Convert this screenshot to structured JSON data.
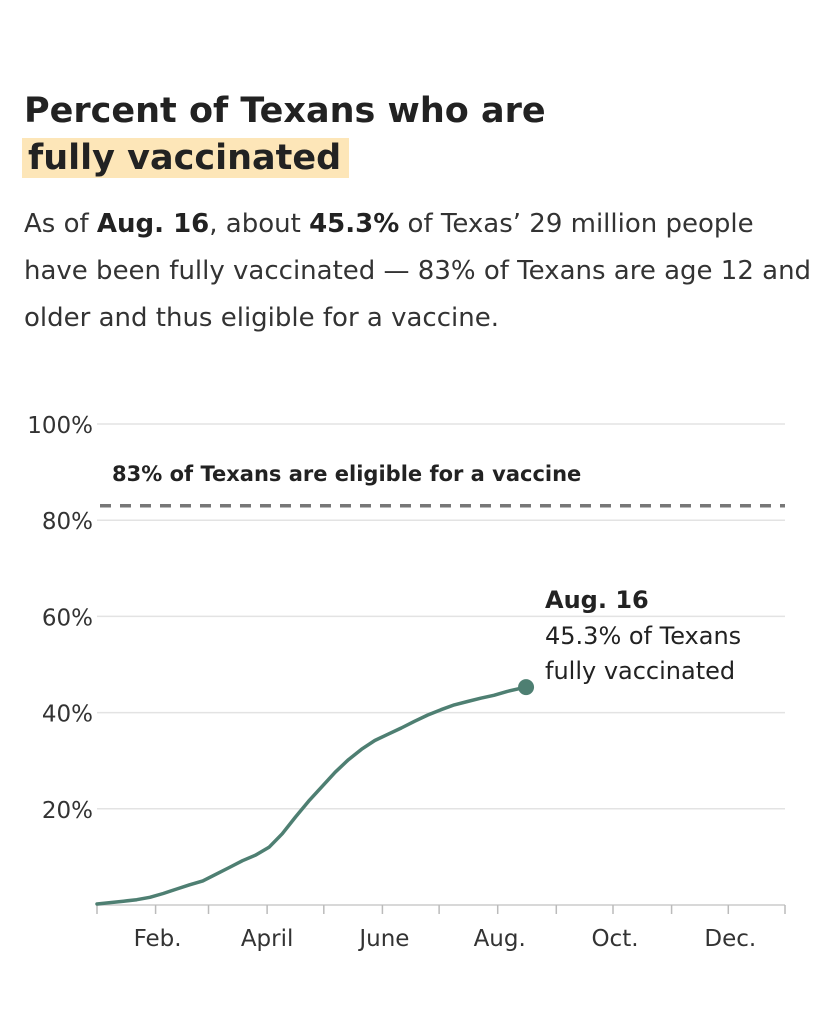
{
  "header": {
    "title_line1": "Percent of Texans who are",
    "title_line2": "fully vaccinated",
    "highlight_color": "#fde6b8"
  },
  "subtitle": {
    "p1": "As of ",
    "b1": "Aug. 16",
    "p2": ", about ",
    "b2": "45.3%",
    "p3": " of Texas’ 29 million people have been fully vaccinated — 83% of Texans are age 12 and older and thus eligible for a vaccine."
  },
  "chart_data": {
    "type": "line",
    "title": "Percent of Texans who are fully vaccinated",
    "xlabel": "",
    "ylabel": "",
    "ylim": [
      0,
      100
    ],
    "yticks": [
      {
        "value": 20,
        "label": "20%"
      },
      {
        "value": 40,
        "label": "40%"
      },
      {
        "value": 60,
        "label": "60%"
      },
      {
        "value": 80,
        "label": "80%"
      },
      {
        "value": 100,
        "label": "100%"
      }
    ],
    "xlim": [
      "2021-01-01",
      "2021-12-31"
    ],
    "xticks": [
      {
        "date": "2021-02-01",
        "label": "Feb."
      },
      {
        "date": "2021-04-01",
        "label": "April"
      },
      {
        "date": "2021-06-01",
        "label": "June"
      },
      {
        "date": "2021-08-01",
        "label": "Aug."
      },
      {
        "date": "2021-10-01",
        "label": "Oct."
      },
      {
        "date": "2021-12-01",
        "label": "Dec."
      }
    ],
    "grid": true,
    "line_color": "#4e7f72",
    "series": [
      {
        "points": [
          [
            "2021-01-01",
            0.2
          ],
          [
            "2021-01-08",
            0.5
          ],
          [
            "2021-01-15",
            0.8
          ],
          [
            "2021-01-22",
            1.1
          ],
          [
            "2021-01-29",
            1.6
          ],
          [
            "2021-02-05",
            2.4
          ],
          [
            "2021-02-12",
            3.3
          ],
          [
            "2021-02-19",
            4.2
          ],
          [
            "2021-02-26",
            5.0
          ],
          [
            "2021-03-05",
            6.4
          ],
          [
            "2021-03-12",
            7.8
          ],
          [
            "2021-03-19",
            9.2
          ],
          [
            "2021-03-26",
            10.4
          ],
          [
            "2021-04-02",
            12.0
          ],
          [
            "2021-04-09",
            14.8
          ],
          [
            "2021-04-16",
            18.3
          ],
          [
            "2021-04-23",
            21.6
          ],
          [
            "2021-04-30",
            24.6
          ],
          [
            "2021-05-07",
            27.6
          ],
          [
            "2021-05-14",
            30.2
          ],
          [
            "2021-05-21",
            32.4
          ],
          [
            "2021-05-28",
            34.2
          ],
          [
            "2021-06-04",
            35.5
          ],
          [
            "2021-06-11",
            36.8
          ],
          [
            "2021-06-18",
            38.2
          ],
          [
            "2021-06-25",
            39.5
          ],
          [
            "2021-07-02",
            40.6
          ],
          [
            "2021-07-09",
            41.6
          ],
          [
            "2021-07-16",
            42.3
          ],
          [
            "2021-07-23",
            43.0
          ],
          [
            "2021-07-30",
            43.6
          ],
          [
            "2021-08-06",
            44.4
          ],
          [
            "2021-08-16",
            45.3
          ]
        ]
      }
    ],
    "reference_line": {
      "value": 83,
      "label": "83% of Texans are eligible for a vaccine",
      "color": "#777777"
    },
    "annotation": {
      "date": "2021-08-16",
      "value": 45.3,
      "bold": "Aug. 16",
      "line1": "45.3% of Texans",
      "line2": "fully vaccinated"
    }
  }
}
